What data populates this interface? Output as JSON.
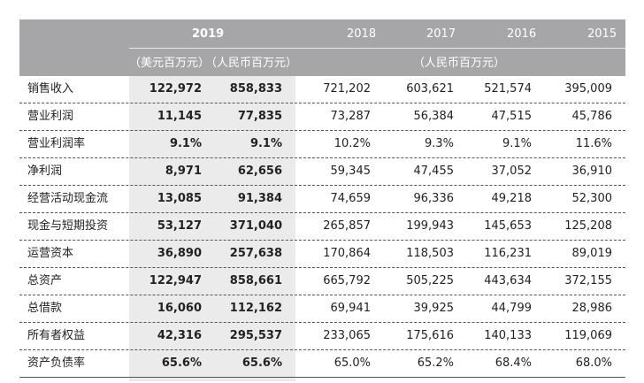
{
  "header": {
    "year_2019": "2019",
    "years_other": [
      "2018",
      "2017",
      "2016",
      "2015"
    ],
    "unit_usd": "（美元百万元）",
    "unit_rmb_2019": "（人民币百万元）",
    "unit_rmb_other": "（人民币百万元）"
  },
  "rows": [
    {
      "label": "销售收入",
      "usd": "122,972",
      "rmb": "858,833",
      "y2018": "721,202",
      "y2017": "603,621",
      "y2016": "521,574",
      "y2015": "395,009"
    },
    {
      "label": "营业利润",
      "usd": "11,145",
      "rmb": "77,835",
      "y2018": "73,287",
      "y2017": "56,384",
      "y2016": "47,515",
      "y2015": "45,786"
    },
    {
      "label": "营业利润率",
      "usd": "9.1%",
      "rmb": "9.1%",
      "y2018": "10.2%",
      "y2017": "9.3%",
      "y2016": "9.1%",
      "y2015": "11.6%"
    },
    {
      "label": "净利润",
      "usd": "8,971",
      "rmb": "62,656",
      "y2018": "59,345",
      "y2017": "47,455",
      "y2016": "37,052",
      "y2015": "36,910"
    },
    {
      "label": "经营活动现金流",
      "usd": "13,085",
      "rmb": "91,384",
      "y2018": "74,659",
      "y2017": "96,336",
      "y2016": "49,218",
      "y2015": "52,300"
    },
    {
      "label": "现金与短期投资",
      "usd": "53,127",
      "rmb": "371,040",
      "y2018": "265,857",
      "y2017": "199,943",
      "y2016": "145,653",
      "y2015": "125,208"
    },
    {
      "label": "运营资本",
      "usd": "36,890",
      "rmb": "257,638",
      "y2018": "170,864",
      "y2017": "118,503",
      "y2016": "116,231",
      "y2015": "89,019"
    },
    {
      "label": "总资产",
      "usd": "122,947",
      "rmb": "858,661",
      "y2018": "665,792",
      "y2017": "505,225",
      "y2016": "443,634",
      "y2015": "372,155"
    },
    {
      "label": "总借款",
      "usd": "16,060",
      "rmb": "112,162",
      "y2018": "69,941",
      "y2017": "39,925",
      "y2016": "44,799",
      "y2015": "28,986"
    },
    {
      "label": "所有者权益",
      "usd": "42,316",
      "rmb": "295,537",
      "y2018": "233,065",
      "y2017": "175,616",
      "y2016": "140,133",
      "y2015": "119,069"
    },
    {
      "label": "资产负债率",
      "usd": "65.6%",
      "rmb": "65.6%",
      "y2018": "65.0%",
      "y2017": "65.2%",
      "y2016": "68.4%",
      "y2015": "68.0%"
    }
  ]
}
